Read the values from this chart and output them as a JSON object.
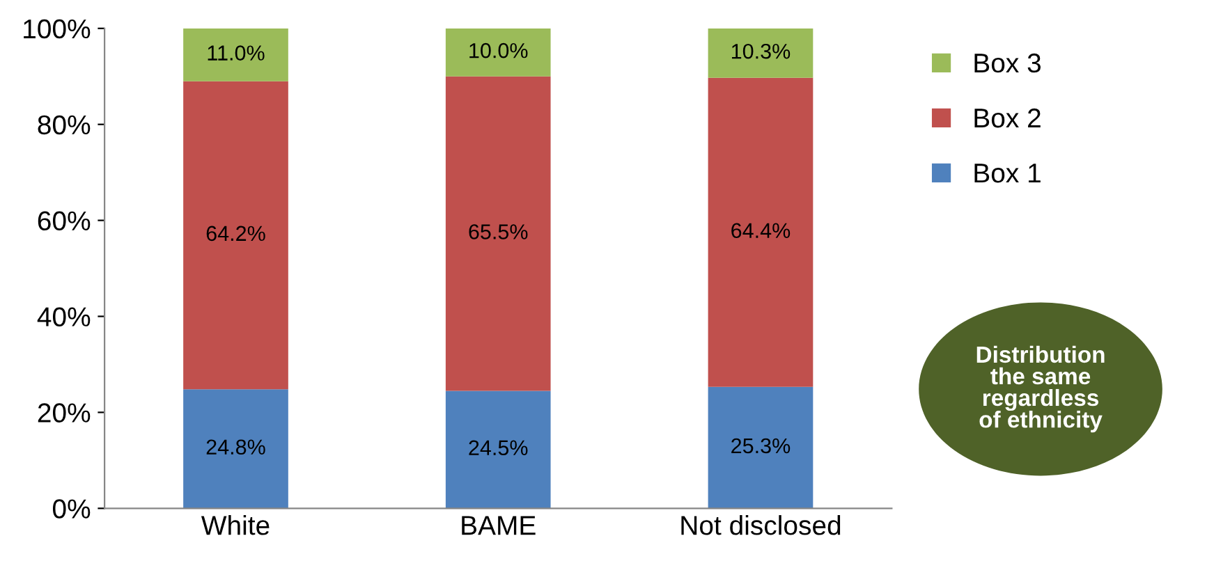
{
  "chart_data": {
    "type": "bar",
    "stacked": true,
    "categories": [
      "White",
      "BAME",
      "Not disclosed"
    ],
    "series": [
      {
        "name": "Box 1",
        "color": "#4f81bd",
        "values": [
          24.8,
          24.5,
          25.3
        ],
        "value_labels": [
          "24.8%",
          "24.5%",
          "25.3%"
        ]
      },
      {
        "name": "Box 2",
        "color": "#c0504d",
        "values": [
          64.2,
          65.5,
          64.4
        ],
        "value_labels": [
          "64.2%",
          "65.5%",
          "64.4%"
        ]
      },
      {
        "name": "Box 3",
        "color": "#9bbb59",
        "values": [
          11.0,
          10.0,
          10.3
        ],
        "value_labels": [
          "11.0%",
          "10.0%",
          "10.3%"
        ]
      }
    ],
    "ylim": [
      0,
      100
    ],
    "yticks": [
      {
        "value": 0,
        "label": "0%"
      },
      {
        "value": 20,
        "label": "20%"
      },
      {
        "value": 40,
        "label": "40%"
      },
      {
        "value": 60,
        "label": "60%"
      },
      {
        "value": 80,
        "label": "80%"
      },
      {
        "value": 100,
        "label": "100%"
      }
    ],
    "grid": false,
    "legend": "right",
    "annotations": [
      "Distribution\nthe same\nregardless\nof ethnicity"
    ]
  }
}
